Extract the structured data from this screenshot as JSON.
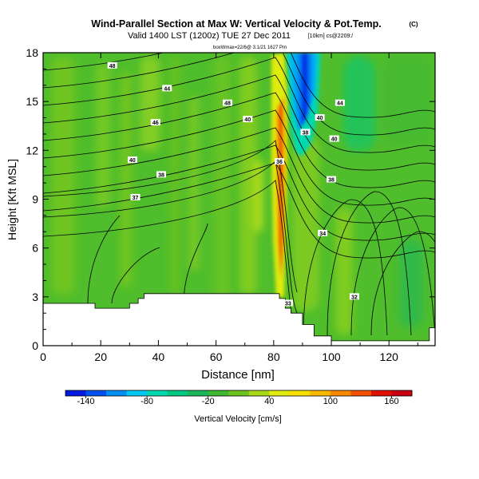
{
  "header": {
    "title": "Wind-Parallel Section at Max W: Vertical Velocity & Pot.Temp.",
    "copyright": "(C)",
    "valid_line": "Valid 1400 LST (1200z) TUE 27 Dec 2011",
    "valid_tag": "[10km] cs@2209:/",
    "info_line": "boxWmax=22/6@ 3.1/21 1627 Pm"
  },
  "chart_data": {
    "type": "heatmap",
    "title": "Wind-Parallel Section at Max W: Vertical Velocity & Pot.Temp.",
    "xlabel": "Distance [nm]",
    "ylabel": "Height [Kft MSL]",
    "xlim": [
      0,
      136
    ],
    "ylim": [
      0,
      18
    ],
    "xticks": [
      0,
      20,
      40,
      60,
      80,
      100,
      120
    ],
    "yticks": [
      0,
      3,
      6,
      9,
      12,
      15,
      18
    ],
    "colorbar": {
      "label": "Vertical Velocity [cm/s]",
      "tick_labels": [
        "-140",
        "-80",
        "-20",
        "40",
        "100",
        "160"
      ],
      "tick_values": [
        -140,
        -80,
        -20,
        40,
        100,
        160
      ],
      "range": [
        -160,
        180
      ],
      "colors": [
        "#0018e0",
        "#0050f0",
        "#0090f5",
        "#00c8f0",
        "#00d8b0",
        "#00c880",
        "#1ab85a",
        "#3fb832",
        "#6cc21e",
        "#a8d81a",
        "#e0ec10",
        "#f8e000",
        "#f8b800",
        "#f88800",
        "#f05000",
        "#e01000",
        "#c80010"
      ]
    },
    "velocity_features": [
      {
        "kind": "updraft",
        "x": 82,
        "y_range": [
          3.2,
          18
        ],
        "peak_cm_s": 160
      },
      {
        "kind": "downdraft",
        "x": 89,
        "y_range": [
          12,
          18
        ],
        "peak_cm_s": -140
      }
    ],
    "terrain_top": [
      [
        0,
        2.6
      ],
      [
        18,
        2.6
      ],
      [
        18,
        2.3
      ],
      [
        30,
        2.3
      ],
      [
        30,
        2.6
      ],
      [
        33,
        2.6
      ],
      [
        33,
        2.9
      ],
      [
        35,
        2.9
      ],
      [
        35,
        3.2
      ],
      [
        82,
        3.2
      ],
      [
        82,
        2.9
      ],
      [
        84,
        2.9
      ],
      [
        84,
        2.3
      ],
      [
        86,
        2.3
      ],
      [
        86,
        2.0
      ],
      [
        90,
        2.0
      ],
      [
        90,
        1.3
      ],
      [
        94,
        1.3
      ],
      [
        94,
        0.6
      ],
      [
        100,
        0.6
      ],
      [
        100,
        0.3
      ],
      [
        134,
        0.3
      ],
      [
        134,
        1.1
      ],
      [
        136,
        1.1
      ]
    ],
    "theta_labels": [
      {
        "text": "48",
        "x": 24,
        "y": 17.2
      },
      {
        "text": "44",
        "x": 43,
        "y": 15.8
      },
      {
        "text": "48",
        "x": 64,
        "y": 14.9
      },
      {
        "text": "46",
        "x": 39,
        "y": 13.7
      },
      {
        "text": "40",
        "x": 71,
        "y": 13.9
      },
      {
        "text": "44",
        "x": 103,
        "y": 14.9
      },
      {
        "text": "40",
        "x": 96,
        "y": 14.0
      },
      {
        "text": "38",
        "x": 91,
        "y": 13.1
      },
      {
        "text": "40",
        "x": 101,
        "y": 12.7
      },
      {
        "text": "40",
        "x": 31,
        "y": 11.4
      },
      {
        "text": "38",
        "x": 41,
        "y": 10.5
      },
      {
        "text": "36",
        "x": 82,
        "y": 11.3
      },
      {
        "text": "38",
        "x": 100,
        "y": 10.2
      },
      {
        "text": "37",
        "x": 32,
        "y": 9.1
      },
      {
        "text": "34",
        "x": 97,
        "y": 6.9
      },
      {
        "text": "32",
        "x": 108,
        "y": 3.0
      },
      {
        "text": "33",
        "x": 85,
        "y": 2.6
      }
    ]
  }
}
